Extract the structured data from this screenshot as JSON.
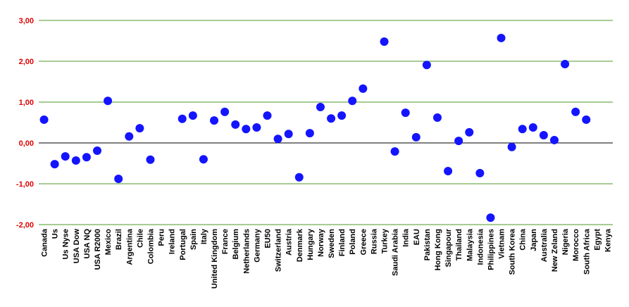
{
  "chart_data": {
    "type": "scatter",
    "categories": [
      "Canada",
      "Us",
      "Us Nyse",
      "USA Dow",
      "USA NQ",
      "USA R2000",
      "Mexico",
      "Brazil",
      "Argentina",
      "Chile",
      "Colombia",
      "Peru",
      "Ireland",
      "Portugal",
      "Spain",
      "Italy",
      "United Kingdom",
      "France",
      "Belgium",
      "Netherlands",
      "Germany",
      "EU50",
      "Switzerland",
      "Austria",
      "Denmark",
      "Hungary",
      "Norway",
      "Sweden",
      "Finland",
      "Poland",
      "Greece",
      "Russia",
      "Turkey",
      "Saudi Arabia",
      "India",
      "EAU",
      "Pakistan",
      "Hong Kong",
      "Singapour",
      "Thailand",
      "Malaysia",
      "Indonesia",
      "Philippines",
      "Vietnam",
      "South Korea",
      "China",
      "Japan",
      "Australia",
      "New Zeland",
      "Nigeria",
      "Morocco",
      "South Africa",
      "Egypt",
      "Kenya"
    ],
    "values": [
      0.57,
      -0.52,
      -0.33,
      -0.43,
      -0.35,
      -0.19,
      1.03,
      -0.88,
      0.16,
      0.36,
      -0.41,
      null,
      null,
      0.59,
      0.67,
      -0.4,
      0.55,
      0.76,
      0.45,
      0.34,
      0.38,
      0.67,
      0.1,
      0.22,
      -0.84,
      0.24,
      0.88,
      0.6,
      0.67,
      1.03,
      1.33,
      null,
      2.48,
      -0.21,
      0.74,
      0.14,
      1.91,
      0.62,
      -0.69,
      0.05,
      0.26,
      -0.74,
      -1.83,
      2.57,
      -0.1,
      0.34,
      0.38,
      0.19,
      0.07,
      1.93,
      0.76,
      0.57,
      null,
      null
    ],
    "color": "#1414ff",
    "ylim": [
      -2,
      3
    ],
    "yticks": [
      {
        "value": -2,
        "label": "-2,00"
      },
      {
        "value": -1,
        "label": "-1,00"
      },
      {
        "value": 0,
        "label": "0,00"
      },
      {
        "value": 1,
        "label": "1,00"
      },
      {
        "value": 2,
        "label": "2,00"
      },
      {
        "value": 3,
        "label": "3,00"
      }
    ],
    "grid": true,
    "grid_color": "#4c9a2a",
    "zero_line_color": "#000000",
    "tick_label_color": "#dd0000"
  }
}
